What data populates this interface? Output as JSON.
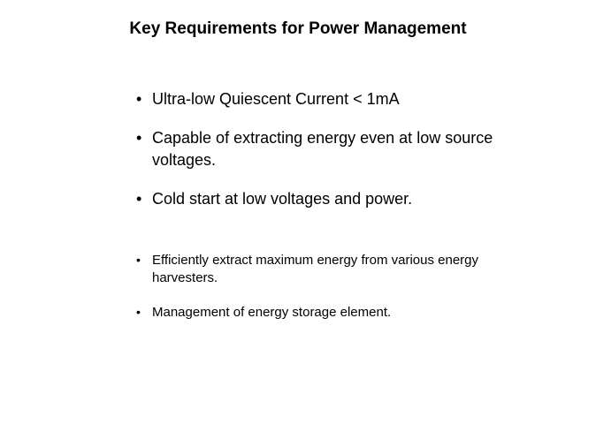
{
  "slide": {
    "title": "Key Requirements for Power Management",
    "group1": {
      "items": [
        "Ultra-low Quiescent Current < 1mA",
        "Capable of extracting energy even at low source voltages.",
        "Cold start at low voltages and power."
      ]
    },
    "group2": {
      "items": [
        "Efficiently extract maximum energy from various energy harvesters.",
        "Management of energy storage element."
      ]
    },
    "styling": {
      "background_color": "#ffffff",
      "text_color": "#000000",
      "title_fontsize": 19,
      "title_fontweight": "bold",
      "large_bullet_fontsize": 18,
      "small_bullet_fontsize": 15,
      "font_family": "Verdana, Geneva, sans-serif",
      "content_left_padding": 152,
      "group_gap": 48,
      "large_item_gap": 20,
      "small_item_gap": 18
    }
  }
}
